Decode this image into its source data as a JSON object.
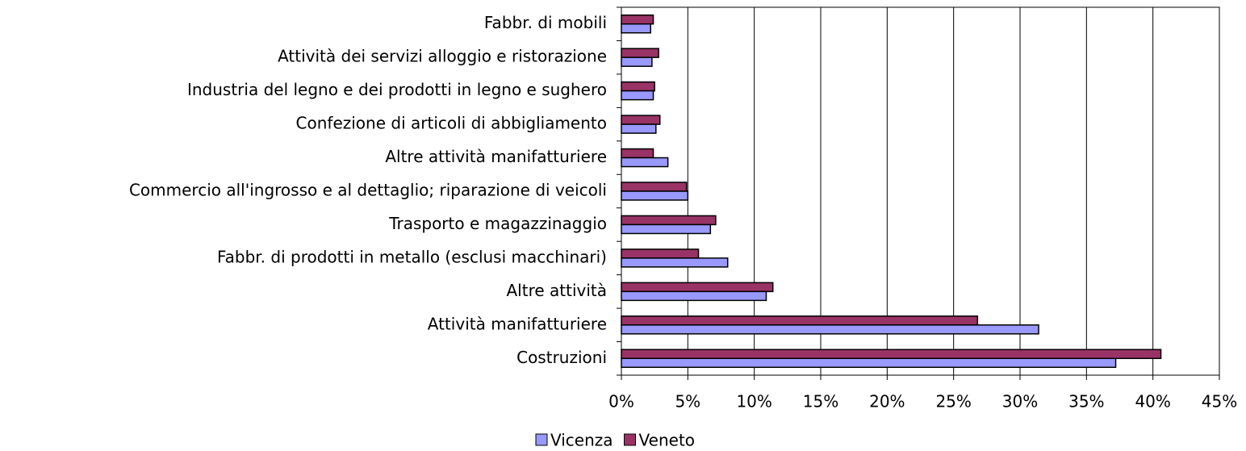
{
  "chart_data": {
    "type": "hbar",
    "categories": [
      "Fabbr. di mobili",
      "Attività dei servizi alloggio e ristorazione",
      "Industria del legno e dei prodotti in legno e sughero",
      "Confezione di articoli di abbigliamento",
      "Altre attività manifatturiere",
      "Commercio all'ingrosso e al dettaglio; riparazione di veicoli",
      "Trasporto e magazzinaggio",
      "Fabbr. di prodotti in metallo (esclusi macchinari)",
      "Altre attività",
      "Attività manifatturiere",
      "Costruzioni"
    ],
    "series": [
      {
        "name": "Vicenza",
        "color": "#9999ff",
        "values": [
          2.2,
          2.3,
          2.4,
          2.6,
          3.5,
          5.0,
          6.7,
          8.0,
          10.9,
          31.4,
          37.2
        ]
      },
      {
        "name": "Veneto",
        "color": "#993366",
        "values": [
          2.4,
          2.8,
          2.5,
          2.9,
          2.4,
          4.9,
          7.1,
          5.8,
          11.4,
          26.8,
          40.6
        ]
      }
    ],
    "xlim": [
      0,
      45
    ],
    "xticks": [
      {
        "value": 0,
        "label": "0%"
      },
      {
        "value": 5,
        "label": "5%"
      },
      {
        "value": 10,
        "label": "10%"
      },
      {
        "value": 15,
        "label": "15%"
      },
      {
        "value": 20,
        "label": "20%"
      },
      {
        "value": 25,
        "label": "25%"
      },
      {
        "value": 30,
        "label": "30%"
      },
      {
        "value": 35,
        "label": "35%"
      },
      {
        "value": 40,
        "label": "40%"
      },
      {
        "value": 45,
        "label": "45%"
      }
    ],
    "grid": true,
    "legend": "bottom"
  }
}
